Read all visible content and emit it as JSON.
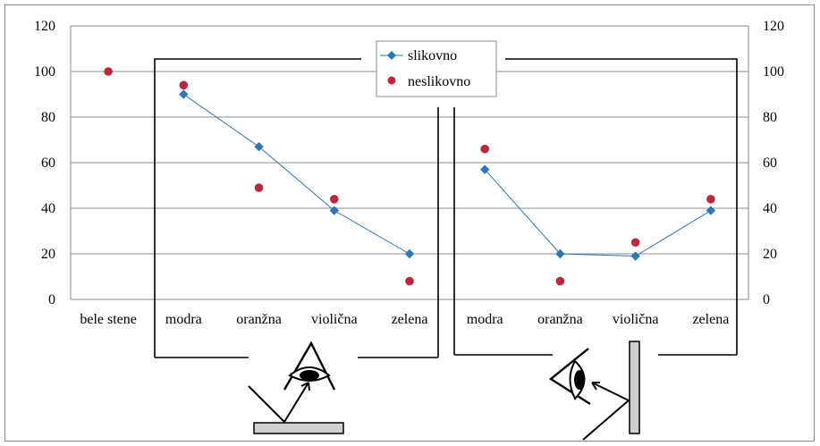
{
  "chart_data": {
    "type": "scatter",
    "categories": [
      "bele stene",
      "modra",
      "oranžna",
      "violična",
      "zelena",
      "modra",
      "oranžna",
      "violična",
      "zelena"
    ],
    "series": [
      {
        "name": "slikovno",
        "color": "#2E75B6",
        "marker": "diamond",
        "line_segments": [
          [
            1,
            2,
            3,
            4
          ],
          [
            5,
            6,
            7,
            8
          ]
        ],
        "values": [
          100,
          90,
          67,
          39,
          20,
          57,
          20,
          19,
          39
        ]
      },
      {
        "name": "neslikovno",
        "color": "#C0263B",
        "marker": "circle",
        "values": [
          100,
          94,
          49,
          44,
          8,
          66,
          8,
          25,
          44
        ]
      }
    ],
    "yticks": [
      "0",
      "20",
      "40",
      "60",
      "80",
      "100",
      "120"
    ],
    "ylim": [
      0,
      120
    ],
    "grid": true,
    "secondary_y_axis": true,
    "legend_position": "top-center",
    "illustrations": [
      "eye-looking-down-at-horizontal-surface",
      "eye-looking-at-vertical-wall"
    ]
  }
}
